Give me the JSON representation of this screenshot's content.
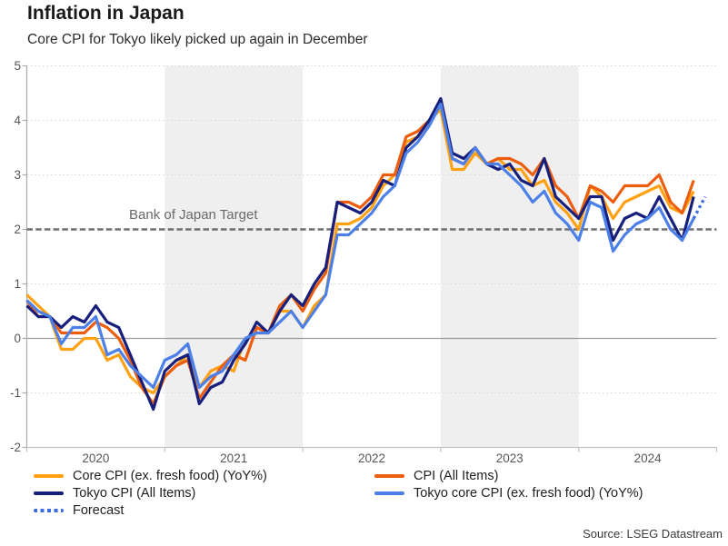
{
  "header": {
    "title": "Inflation in Japan",
    "subtitle": "Core CPI for Tokyo likely picked up again in December"
  },
  "source": "Source: LSEG Datastream",
  "colors": {
    "core_cpi_orange": "#FFA113",
    "cpi_red_orange": "#EC5E0D",
    "tokyo_navy": "#161F7C",
    "tokyo_core_blue": "#4C80E8",
    "forecast_blue": "#3D6BE0",
    "band_gray": "#EFEFEF",
    "grid_dotted": "#D8D8D8",
    "zero_line": "#9C9C9C",
    "axis_line": "#C2C2C2",
    "target_dash": "#6F6F6F",
    "tick_text": "#565656"
  },
  "chart_data": {
    "type": "line",
    "title": "Inflation in Japan",
    "subtitle": "Core CPI for Tokyo likely picked up again in December",
    "unit": "YoY %",
    "frequency": "monthly",
    "x_start": "2020-01",
    "x_end_solid": "2024-11",
    "x_end_forecast": "2024-12",
    "ylim": [
      -2,
      5
    ],
    "y_ticks": [
      5,
      4,
      3,
      2,
      1,
      0,
      -1,
      -2
    ],
    "x_year_labels": [
      "2020",
      "2021",
      "2022",
      "2023",
      "2024"
    ],
    "shaded_years": [
      "2021",
      "2023"
    ],
    "grid": "dotted-horizontal",
    "legend_position": "bottom-two-columns",
    "target_line": {
      "value": 2,
      "label": "Bank of Japan Target"
    },
    "series": [
      {
        "key": "core-cpi",
        "name": "Core CPI (ex. fresh food) (YoY%)",
        "color": "#FFA113",
        "style": "solid",
        "values": [
          0.8,
          0.6,
          0.4,
          -0.2,
          -0.2,
          0.0,
          0.0,
          -0.4,
          -0.3,
          -0.7,
          -0.9,
          -1.0,
          -0.7,
          -0.5,
          -0.3,
          -0.9,
          -0.6,
          -0.5,
          -0.6,
          0.0,
          0.1,
          0.1,
          0.5,
          0.5,
          0.2,
          0.6,
          0.8,
          2.1,
          2.1,
          2.2,
          2.4,
          2.8,
          3.0,
          3.6,
          3.7,
          4.0,
          4.2,
          3.1,
          3.1,
          3.4,
          3.2,
          3.3,
          3.1,
          3.1,
          2.8,
          2.9,
          2.5,
          2.3,
          2.0,
          2.8,
          2.6,
          2.2,
          2.5,
          2.6,
          2.7,
          2.8,
          2.4,
          2.3,
          2.7
        ]
      },
      {
        "key": "cpi-all-items",
        "name": "CPI (All Items)",
        "color": "#EC5E0D",
        "style": "solid",
        "values": [
          0.7,
          0.4,
          0.4,
          0.1,
          0.1,
          0.1,
          0.3,
          0.2,
          0.0,
          -0.4,
          -0.9,
          -1.2,
          -0.7,
          -0.5,
          -0.4,
          -1.1,
          -0.8,
          -0.5,
          -0.3,
          -0.4,
          0.2,
          0.1,
          0.6,
          0.8,
          0.5,
          0.9,
          1.2,
          2.5,
          2.5,
          2.4,
          2.6,
          3.0,
          3.0,
          3.7,
          3.8,
          4.0,
          4.3,
          3.3,
          3.2,
          3.5,
          3.2,
          3.3,
          3.3,
          3.2,
          3.0,
          3.3,
          2.8,
          2.6,
          2.2,
          2.8,
          2.7,
          2.5,
          2.8,
          2.8,
          2.8,
          3.0,
          2.5,
          2.3,
          2.9
        ]
      },
      {
        "key": "tokyo-cpi",
        "name": "Tokyo CPI (All Items)",
        "color": "#161F7C",
        "style": "solid",
        "values": [
          0.6,
          0.4,
          0.4,
          0.2,
          0.4,
          0.3,
          0.6,
          0.3,
          0.2,
          -0.3,
          -0.8,
          -1.3,
          -0.6,
          -0.4,
          -0.3,
          -1.2,
          -0.9,
          -0.8,
          -0.4,
          -0.1,
          0.3,
          0.1,
          0.5,
          0.8,
          0.6,
          1.0,
          1.3,
          2.5,
          2.4,
          2.3,
          2.5,
          2.9,
          2.8,
          3.5,
          3.7,
          4.0,
          4.4,
          3.4,
          3.3,
          3.5,
          3.2,
          3.1,
          3.2,
          2.9,
          2.8,
          3.3,
          2.6,
          2.4,
          2.2,
          2.6,
          2.6,
          1.8,
          2.2,
          2.3,
          2.2,
          2.6,
          2.2,
          1.8,
          2.6
        ]
      },
      {
        "key": "tokyo-core-cpi",
        "name": "Tokyo core CPI (ex. fresh food) (YoY%)",
        "color": "#4C80E8",
        "style": "solid",
        "values": [
          0.7,
          0.5,
          0.4,
          -0.1,
          0.2,
          0.2,
          0.4,
          -0.3,
          -0.2,
          -0.5,
          -0.7,
          -0.9,
          -0.4,
          -0.3,
          -0.1,
          -0.9,
          -0.7,
          -0.6,
          -0.3,
          0.0,
          0.1,
          0.1,
          0.3,
          0.5,
          0.2,
          0.5,
          0.8,
          1.9,
          1.9,
          2.1,
          2.3,
          2.6,
          2.8,
          3.4,
          3.6,
          3.9,
          4.3,
          3.3,
          3.2,
          3.5,
          3.2,
          3.2,
          3.0,
          2.8,
          2.5,
          2.7,
          2.3,
          2.1,
          1.8,
          2.5,
          2.4,
          1.6,
          1.9,
          2.1,
          2.2,
          2.4,
          2.0,
          1.8,
          2.2
        ]
      },
      {
        "key": "forecast",
        "name": "Forecast",
        "color": "#3D6BE0",
        "style": "dotted",
        "x_index_start": 58,
        "values": [
          2.2,
          2.6
        ]
      }
    ]
  }
}
